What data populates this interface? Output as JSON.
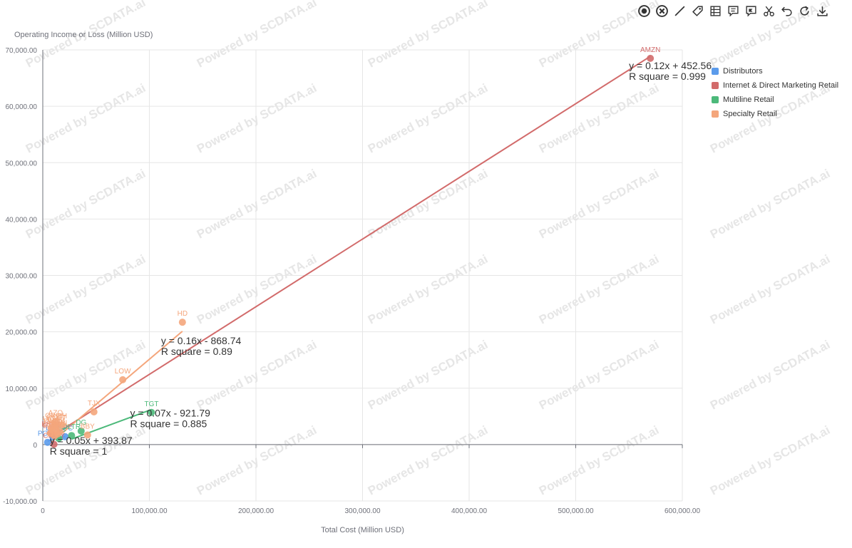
{
  "toolbar": {
    "tools": [
      {
        "name": "record-icon"
      },
      {
        "name": "clear-icon"
      },
      {
        "name": "line-icon"
      },
      {
        "name": "tag-icon"
      },
      {
        "name": "data-view-icon"
      },
      {
        "name": "comment-icon"
      },
      {
        "name": "flag-comment-icon"
      },
      {
        "name": "scissors-icon"
      },
      {
        "name": "undo-icon"
      },
      {
        "name": "refresh-icon"
      },
      {
        "name": "download-icon"
      }
    ]
  },
  "watermark": "Powered by SCDATA.ai",
  "chart_data": {
    "type": "scatter",
    "title": "",
    "xlabel": "Total Cost (Million USD)",
    "ylabel": "Operating Income or Loss (Million USD)",
    "xlim": [
      0,
      600000
    ],
    "ylim": [
      -10000,
      70000
    ],
    "x_ticks": [
      "0",
      "100,000.00",
      "200,000.00",
      "300,000.00",
      "400,000.00",
      "500,000.00",
      "600,000.00"
    ],
    "y_ticks": [
      "-10,000.00",
      "0",
      "10,000.00",
      "20,000.00",
      "30,000.00",
      "40,000.00",
      "50,000.00",
      "60,000.00",
      "70,000.00"
    ],
    "x_tick_values": [
      0,
      100000,
      200000,
      300000,
      400000,
      500000,
      600000
    ],
    "y_tick_values": [
      -10000,
      0,
      10000,
      20000,
      30000,
      40000,
      50000,
      60000,
      70000
    ],
    "grid": true,
    "legend_position": "right",
    "series": [
      {
        "name": "Distributors",
        "color": "#5B9BEB",
        "points": [
          {
            "x": 4500,
            "y": 400,
            "label": "POOL"
          },
          {
            "x": 9500,
            "y": 1400,
            "label": "LKQ"
          },
          {
            "x": 21000,
            "y": 1400,
            "label": "GPC"
          }
        ],
        "trendline": {
          "x": [
            4500,
            21000
          ],
          "y": [
            619,
            1444
          ]
        },
        "equation": "y = 0.05x + 393.87",
        "r_square": "R square = 1"
      },
      {
        "name": "Internet & Direct Marketing Retail",
        "color": "#D26B6B",
        "points": [
          {
            "x": 570000,
            "y": 68500,
            "label": "AMZN"
          },
          {
            "x": 7500,
            "y": 2100,
            "label": "EBAY"
          },
          {
            "x": 9000,
            "y": 1800,
            "label": "ETSY"
          },
          {
            "x": 10500,
            "y": 50,
            "label": "CHWY"
          }
        ],
        "trendline": {
          "x": [
            7500,
            570000
          ],
          "y": [
            1353,
            68853
          ]
        },
        "equation": "y = 0.12x + 452.56",
        "r_square": "R square = 0.999"
      },
      {
        "name": "Multiline Retail",
        "color": "#4CB97A",
        "points": [
          {
            "x": 102000,
            "y": 5700,
            "label": "TGT"
          },
          {
            "x": 36000,
            "y": 2400,
            "label": "DG"
          },
          {
            "x": 27000,
            "y": 1600,
            "label": "DLTR"
          },
          {
            "x": 15000,
            "y": 1100,
            "label": "KSS"
          }
        ],
        "trendline": {
          "x": [
            27000,
            102000
          ],
          "y": [
            968,
            6218
          ]
        },
        "equation": "y = 0.07x - 921.79",
        "r_square": "R square = 0.885"
      },
      {
        "name": "Specialty Retail",
        "color": "#F4A67C",
        "points": [
          {
            "x": 131000,
            "y": 21700,
            "label": "HD"
          },
          {
            "x": 75000,
            "y": 11500,
            "label": "LOW"
          },
          {
            "x": 48000,
            "y": 5800,
            "label": "TJX"
          },
          {
            "x": 42000,
            "y": 1700,
            "label": "BBY"
          },
          {
            "x": 12000,
            "y": 4100,
            "label": "AZO"
          },
          {
            "x": 11000,
            "y": 3600,
            "label": "ORLY"
          },
          {
            "x": 13000,
            "y": 3300,
            "label": "ROST"
          },
          {
            "x": 8000,
            "y": 3000,
            "label": "ULTA"
          },
          {
            "x": 9000,
            "y": 2600,
            "label": "TSCO"
          },
          {
            "x": 16000,
            "y": 2300,
            "label": "BURL"
          },
          {
            "x": 7000,
            "y": 2000,
            "label": "GPS"
          },
          {
            "x": 11000,
            "y": 1500,
            "label": "AAP"
          },
          {
            "x": 14000,
            "y": 1900,
            "label": "BBWI"
          },
          {
            "x": 12500,
            "y": 2700,
            "label": "WSM"
          },
          {
            "x": 18000,
            "y": 3500,
            "label": "RH"
          }
        ],
        "trendline": {
          "x": [
            7000,
            131000
          ],
          "y": [
            251,
            20091
          ]
        },
        "equation": "y = 0.16x - 868.74",
        "r_square": "R square = 0.89"
      }
    ]
  }
}
